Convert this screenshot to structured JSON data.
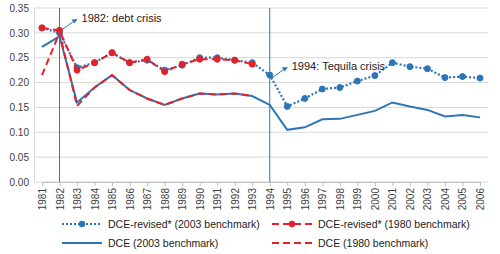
{
  "chart_data": {
    "type": "line",
    "categories": [
      "1981",
      "1982",
      "1983",
      "1984",
      "1985",
      "1986",
      "1987",
      "1988",
      "1989",
      "1990",
      "1991",
      "1992",
      "1993",
      "1994",
      "1995",
      "1996",
      "1997",
      "1998",
      "1999",
      "2000",
      "2001",
      "2002",
      "2003",
      "2004",
      "2005",
      "2006"
    ],
    "series": [
      {
        "name": "DCE-revised* (2003 benchmark)",
        "color": "#2e75b6",
        "line_style": "dotted",
        "marker": "circle",
        "values": [
          0.31,
          0.3,
          0.23,
          0.24,
          0.26,
          0.24,
          0.245,
          0.225,
          0.235,
          0.25,
          0.25,
          0.245,
          0.24,
          0.215,
          0.152,
          0.168,
          0.187,
          0.19,
          0.203,
          0.214,
          0.24,
          0.232,
          0.228,
          0.21,
          0.212,
          0.209
        ]
      },
      {
        "name": "DCE-revised* (1980 benchmark)",
        "color": "#e3222b",
        "line_style": "dashed",
        "marker": "circle",
        "values": [
          0.31,
          0.305,
          0.225,
          0.24,
          0.26,
          0.24,
          0.247,
          0.222,
          0.237,
          0.247,
          0.247,
          0.245,
          0.237,
          null,
          null,
          null,
          null,
          null,
          null,
          null,
          null,
          null,
          null,
          null,
          null,
          null
        ]
      },
      {
        "name": "DCE (2003 benchmark)",
        "color": "#2e75b6",
        "line_style": "solid",
        "marker": "none",
        "values": [
          0.272,
          0.293,
          0.16,
          0.19,
          0.215,
          0.185,
          0.168,
          0.155,
          0.168,
          0.178,
          0.176,
          0.178,
          0.173,
          0.155,
          0.105,
          0.11,
          0.126,
          0.127,
          0.135,
          0.143,
          0.16,
          0.152,
          0.145,
          0.132,
          0.135,
          0.13
        ]
      },
      {
        "name": "DCE (1980 benchmark)",
        "color": "#e3222b",
        "line_style": "dashed",
        "marker": "none",
        "values": [
          0.215,
          0.3,
          0.153,
          0.19,
          0.215,
          0.185,
          0.168,
          0.155,
          0.168,
          0.178,
          0.176,
          0.178,
          0.173,
          null,
          null,
          null,
          null,
          null,
          null,
          null,
          null,
          null,
          null,
          null,
          null,
          null
        ]
      }
    ],
    "ylim": [
      0,
      0.35
    ],
    "yticks": [
      {
        "value": 0,
        "label": "0.00"
      },
      {
        "value": 0.05,
        "label": "0.05"
      },
      {
        "value": 0.1,
        "label": "0.10"
      },
      {
        "value": 0.15,
        "label": "0.15"
      },
      {
        "value": 0.2,
        "label": "0.20"
      },
      {
        "value": 0.25,
        "label": "0.25"
      },
      {
        "value": 0.3,
        "label": "0.30"
      },
      {
        "value": 0.35,
        "label": "0.35"
      }
    ],
    "grid": true,
    "legend": "bottom",
    "annotations": [
      {
        "text": "1982: debt crisis",
        "x": "1982"
      },
      {
        "text": "1994: Tequila crisis",
        "x": "1994"
      }
    ]
  }
}
